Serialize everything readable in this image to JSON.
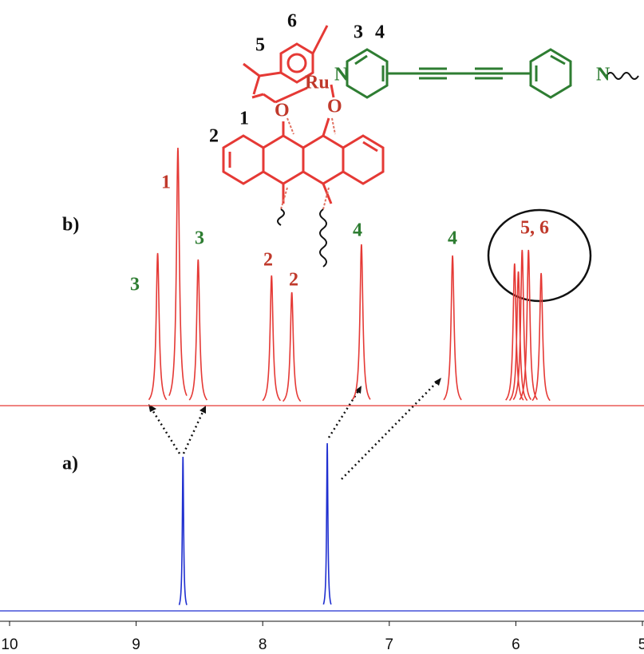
{
  "chart_data": {
    "type": "spectrum",
    "xlim": [
      10,
      5
    ],
    "reverse_x": true,
    "xticks": [
      {
        "value": 10,
        "label": "10"
      },
      9,
      8,
      7,
      6,
      5
    ],
    "series": [
      {
        "name": "a)",
        "color": "#1f2fd0",
        "x": [
          8.63,
          7.49
        ],
        "values": [
          193,
          210
        ]
      },
      {
        "name": "b)",
        "color": "#e53935",
        "x": [
          8.83,
          8.67,
          8.51,
          7.93,
          7.77,
          7.22,
          6.5,
          6.01,
          5.98,
          5.95,
          5.9,
          5.8
        ],
        "values": [
          191,
          323,
          183,
          163,
          142,
          202,
          188,
          178,
          168,
          195,
          195,
          166
        ]
      }
    ],
    "annotations": [
      "3",
      "1",
      "3",
      "2",
      "2",
      "4",
      "4",
      "5, 6"
    ]
  },
  "structure_labels": [
    "6",
    "5",
    "3",
    "4",
    "Ru",
    "N",
    "N",
    "O",
    "O",
    "1",
    "2"
  ]
}
